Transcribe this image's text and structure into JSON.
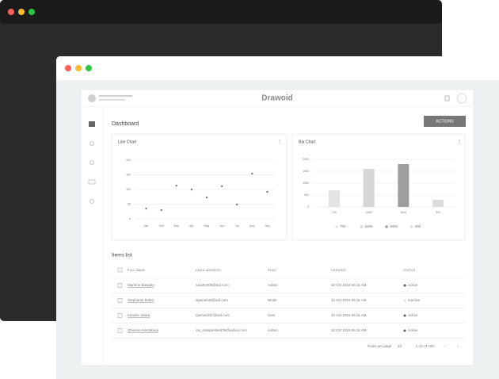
{
  "brand": "Drawoid",
  "page_title": "Dashboard",
  "action_button": "ACTIONS",
  "chart_data": [
    {
      "type": "line",
      "title": "Line Chart",
      "categories": [
        "Jan",
        "Feb",
        "Mar",
        "Apr",
        "May",
        "Jun",
        "Jul",
        "Aug",
        "Sep"
      ],
      "values": [
        35,
        30,
        113,
        100,
        73,
        111,
        49,
        154,
        92
      ],
      "color": "#777777",
      "ylim": [
        0,
        200
      ],
      "yticks": [
        0,
        50,
        100,
        150,
        200
      ],
      "grid": true
    },
    {
      "type": "bar",
      "title": "Bar Chart",
      "categories": [
        "700",
        "1600",
        "1800",
        "300"
      ],
      "values": [
        700,
        1600,
        1800,
        300
      ],
      "colors": [
        "#e3e3e3",
        "#d6d6d6",
        "#9e9e9e",
        "#dcdcdc"
      ],
      "ylim": [
        0,
        2000
      ],
      "yticks": [
        0,
        500,
        1000,
        1500,
        2000
      ],
      "grid": true,
      "legend": "bottom"
    }
  ],
  "items": {
    "title": "Items list",
    "columns": [
      "FULL NAME",
      "EMAIL ADDRESS",
      "ROLE",
      "CREATED",
      "STATUS"
    ],
    "rows": [
      {
        "name": "Marlene Basgate",
        "email": "sarah1006@aol.com",
        "role": "Admin",
        "created": "10 Oct 2016 06:11 AM",
        "status": "Active",
        "dot": "#555555"
      },
      {
        "name": "Stephanie Butler",
        "email": "stjames49@aol.com",
        "role": "Writer",
        "created": "10 Oct 2016 06:11 AM",
        "status": "Inactive",
        "dot": "#dddddd"
      },
      {
        "name": "Kendric Iwaka",
        "email": "ryeman257@aol.com",
        "role": "User",
        "created": "10 Oct 2016 06:11 AM",
        "status": "Active",
        "dot": "#555555"
      },
      {
        "name": "Chinese Alemafuna",
        "email": "ms_independent76@yahoo.com",
        "role": "Admin",
        "created": "10 Oct 2016 06:11 AM",
        "status": "Active",
        "dot": "#555555"
      }
    ],
    "rows_per_page_label": "Rows per page:",
    "rows_per_page": "10",
    "range": "1-10 of 100"
  }
}
